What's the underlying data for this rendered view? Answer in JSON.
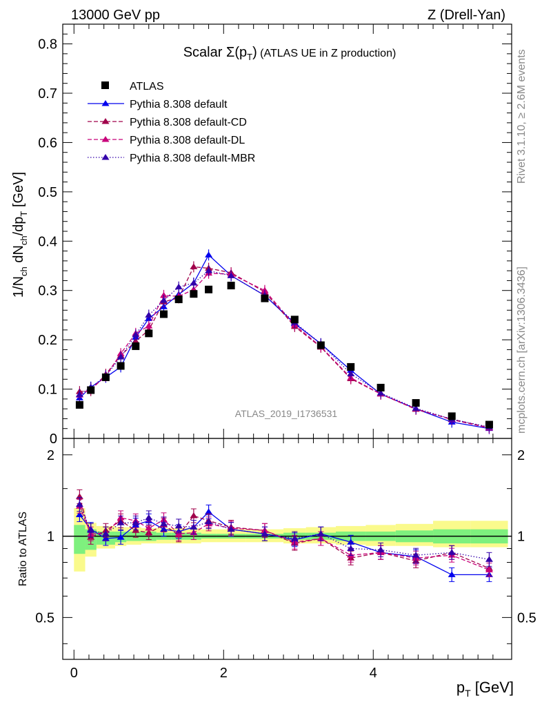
{
  "header": {
    "left": "13000 GeV pp",
    "right": "Z (Drell-Yan)"
  },
  "side": {
    "rivet": "Rivet 3.1.10, ≥ 2.6M events",
    "mcplots": "mcplots.cern.ch [arXiv:1306.3436]"
  },
  "watermark": "ATLAS_2019_I1736531",
  "colors": {
    "atlas": "#000000",
    "default": "#0000ee",
    "cd": "#a0004a",
    "dl": "#c8007a",
    "mbr": "#3300aa",
    "band_inner": "#7ef07e",
    "band_outer": "#fafa8c"
  },
  "chart_data": [
    {
      "type": "scatter",
      "title": "Scalar Σ(pT) (ATLAS UE in Z production)",
      "title_parts": {
        "main": "Scalar Σ(p",
        "sub": "T",
        "close": ")",
        "rest": " (ATLAS UE in Z production)"
      },
      "ylabel": "1/N_ch dN_ch/dp_T [GeV]",
      "xlim": [
        -0.15,
        5.85
      ],
      "ylim": [
        0,
        0.84
      ],
      "yticks": [
        0,
        0.1,
        0.2,
        0.3,
        0.4,
        0.5,
        0.6,
        0.7,
        0.8
      ],
      "ytick_labels": [
        "0",
        "0.1",
        "0.2",
        "0.3",
        "0.4",
        "0.5",
        "0.6",
        "0.7",
        "0.8"
      ],
      "legend": [
        "ATLAS",
        "Pythia 8.308 default",
        "Pythia 8.308 default-CD",
        "Pythia 8.308 default-DL",
        "Pythia 8.308 default-MBR"
      ],
      "legend_position": "top-left",
      "x": [
        0.075,
        0.225,
        0.425,
        0.625,
        0.825,
        1.0,
        1.2,
        1.4,
        1.6,
        1.8,
        2.1,
        2.55,
        2.95,
        3.3,
        3.7,
        4.1,
        4.57,
        5.05,
        5.55
      ],
      "series": [
        {
          "name": "ATLAS",
          "values": [
            0.068,
            0.098,
            0.124,
            0.147,
            0.187,
            0.213,
            0.252,
            0.282,
            0.293,
            0.302,
            0.31,
            0.284,
            0.241,
            0.189,
            0.145,
            0.103,
            0.072,
            0.045,
            0.028
          ]
        },
        {
          "name": "Pythia 8.308 default",
          "values": [
            0.082,
            0.104,
            0.124,
            0.145,
            0.205,
            0.243,
            0.267,
            0.292,
            0.315,
            0.372,
            0.33,
            0.29,
            0.233,
            0.192,
            0.138,
            0.09,
            0.06,
            0.033,
            0.02
          ]
        },
        {
          "name": "Pythia 8.308 default-CD",
          "values": [
            0.095,
            0.097,
            0.13,
            0.168,
            0.197,
            0.22,
            0.277,
            0.285,
            0.348,
            0.345,
            0.336,
            0.297,
            0.227,
            0.185,
            0.121,
            0.09,
            0.059,
            0.039,
            0.022
          ]
        },
        {
          "name": "Pythia 8.308 default-DL",
          "values": [
            0.088,
            0.1,
            0.126,
            0.172,
            0.213,
            0.228,
            0.29,
            0.288,
            0.302,
            0.335,
            0.333,
            0.3,
            0.23,
            0.186,
            0.123,
            0.09,
            0.06,
            0.038,
            0.021
          ]
        },
        {
          "name": "Pythia 8.308 default-MBR",
          "values": [
            0.089,
            0.103,
            0.127,
            0.165,
            0.21,
            0.25,
            0.28,
            0.307,
            0.315,
            0.34,
            0.33,
            0.29,
            0.235,
            0.192,
            0.131,
            0.092,
            0.061,
            0.039,
            0.023
          ]
        }
      ]
    },
    {
      "type": "line",
      "ylabel": "Ratio to ATLAS",
      "xlabel": "pT [GeV]",
      "xlabel_parts": {
        "main": "p",
        "sub": "T",
        "rest": " [GeV]"
      },
      "xlim": [
        -0.15,
        5.85
      ],
      "ylim": [
        0.35,
        2.3
      ],
      "log_y": true,
      "yticks": [
        0.5,
        1,
        2
      ],
      "ytick_labels": [
        "0.5",
        "1",
        "2"
      ],
      "xticks": [
        0,
        2,
        4
      ],
      "xtick_labels": [
        "0",
        "2",
        "4"
      ],
      "x": [
        0.075,
        0.225,
        0.425,
        0.625,
        0.825,
        1.0,
        1.2,
        1.4,
        1.6,
        1.8,
        2.1,
        2.55,
        2.95,
        3.3,
        3.7,
        4.1,
        4.57,
        5.05,
        5.55
      ],
      "series": [
        {
          "name": "Pythia 8.308 default",
          "values": [
            1.2,
            1.06,
            0.98,
            0.99,
            1.1,
            1.14,
            1.06,
            1.04,
            1.08,
            1.23,
            1.06,
            1.02,
            0.97,
            1.02,
            0.95,
            0.87,
            0.84,
            0.72,
            0.72
          ]
        },
        {
          "name": "Pythia 8.308 default-CD",
          "values": [
            1.4,
            0.99,
            1.05,
            1.14,
            1.05,
            1.03,
            1.1,
            1.01,
            1.19,
            1.14,
            1.08,
            1.05,
            0.94,
            0.98,
            0.83,
            0.87,
            0.81,
            0.87,
            0.76
          ]
        },
        {
          "name": "Pythia 8.308 default-DL",
          "values": [
            1.29,
            1.02,
            1.02,
            1.17,
            1.14,
            1.07,
            1.15,
            1.02,
            1.03,
            1.11,
            1.07,
            1.05,
            0.95,
            0.98,
            0.85,
            0.87,
            0.83,
            0.85,
            0.75
          ]
        },
        {
          "name": "Pythia 8.308 default-MBR",
          "values": [
            1.31,
            1.05,
            1.02,
            1.12,
            1.12,
            1.17,
            1.11,
            1.09,
            1.08,
            1.13,
            1.06,
            1.02,
            0.98,
            1.02,
            0.9,
            0.89,
            0.85,
            0.87,
            0.82
          ]
        }
      ],
      "band_edges": [
        0.0,
        0.15,
        0.3,
        0.55,
        0.7,
        0.9,
        1.1,
        1.3,
        1.5,
        1.7,
        1.9,
        2.3,
        2.8,
        3.1,
        3.5,
        3.9,
        4.3,
        4.8,
        5.3,
        5.8
      ],
      "band_inner": [
        [
          0.86,
          1.1
        ],
        [
          0.89,
          1.06
        ],
        [
          0.93,
          1.04
        ],
        [
          0.95,
          1.04
        ],
        [
          0.96,
          1.04
        ],
        [
          0.96,
          1.04
        ],
        [
          0.97,
          1.03
        ],
        [
          0.97,
          1.03
        ],
        [
          0.97,
          1.03
        ],
        [
          0.98,
          1.02
        ],
        [
          0.98,
          1.02
        ],
        [
          0.98,
          1.02
        ],
        [
          0.97,
          1.03
        ],
        [
          0.97,
          1.03
        ],
        [
          0.96,
          1.04
        ],
        [
          0.96,
          1.04
        ],
        [
          0.95,
          1.05
        ],
        [
          0.94,
          1.06
        ],
        [
          0.94,
          1.06
        ]
      ],
      "band_outer": [
        [
          0.74,
          1.27
        ],
        [
          0.84,
          1.12
        ],
        [
          0.9,
          1.09
        ],
        [
          0.92,
          1.08
        ],
        [
          0.93,
          1.08
        ],
        [
          0.94,
          1.07
        ],
        [
          0.94,
          1.07
        ],
        [
          0.94,
          1.07
        ],
        [
          0.94,
          1.07
        ],
        [
          0.95,
          1.06
        ],
        [
          0.95,
          1.06
        ],
        [
          0.95,
          1.06
        ],
        [
          0.94,
          1.07
        ],
        [
          0.94,
          1.08
        ],
        [
          0.93,
          1.09
        ],
        [
          0.92,
          1.1
        ],
        [
          0.92,
          1.11
        ],
        [
          0.91,
          1.14
        ],
        [
          0.91,
          1.14
        ]
      ]
    }
  ]
}
